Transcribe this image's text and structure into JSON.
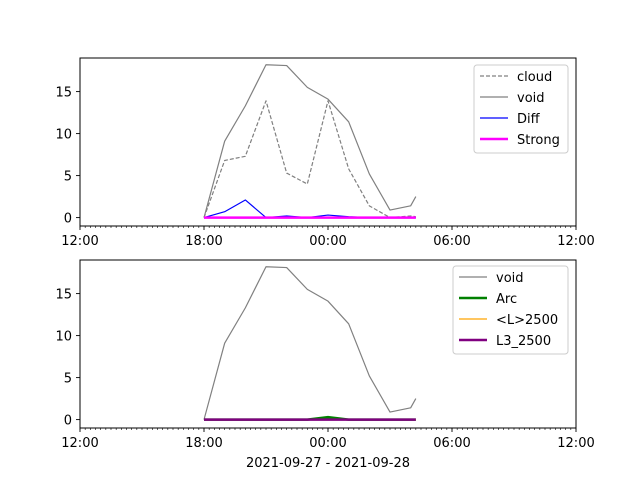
{
  "chart_data": [
    {
      "type": "line",
      "xlabel": "",
      "ylabel": "",
      "xlim": [
        "2021-09-27 12:00",
        "2021-09-28 12:00"
      ],
      "ylim": [
        -1,
        19
      ],
      "x_tick_labels": [
        "12:00",
        "18:00",
        "00:00",
        "06:00",
        "12:00"
      ],
      "y_tick_values": [
        0,
        5,
        10,
        15
      ],
      "y_tick_labels": [
        "0",
        "5",
        "10",
        "15"
      ],
      "grid": false,
      "legend_position": "upper right",
      "x": [
        "2021-09-27 18:00",
        "2021-09-27 19:00",
        "2021-09-27 20:00",
        "2021-09-27 21:00",
        "2021-09-27 22:00",
        "2021-09-27 23:00",
        "2021-09-28 00:00",
        "2021-09-28 01:00",
        "2021-09-28 02:00",
        "2021-09-28 03:00",
        "2021-09-28 04:00",
        "2021-09-28 04:15"
      ],
      "series": [
        {
          "name": "cloud",
          "color": "#808080",
          "style": "dashed",
          "values": [
            0,
            6.8,
            7.3,
            13.9,
            5.3,
            4.0,
            13.9,
            5.8,
            1.4,
            0,
            0.2,
            0.1
          ]
        },
        {
          "name": "void",
          "color": "#808080",
          "style": "solid",
          "values": [
            0,
            9.1,
            13.3,
            18.2,
            18.1,
            15.5,
            14.1,
            11.4,
            5.2,
            0.9,
            1.4,
            2.5
          ]
        },
        {
          "name": "Diff",
          "color": "#0000ff",
          "style": "solid",
          "values": [
            0,
            0.7,
            2.1,
            0,
            0.2,
            0,
            0.3,
            0.1,
            0,
            0,
            0,
            0
          ]
        },
        {
          "name": "Strong",
          "color": "#ff00ff",
          "style": "thick",
          "values": [
            0,
            0,
            0,
            0,
            0,
            0,
            0,
            0,
            0,
            0,
            0,
            0
          ]
        }
      ]
    },
    {
      "type": "line",
      "xlabel": "2021-09-27 - 2021-09-28",
      "ylabel": "",
      "xlim": [
        "2021-09-27 12:00",
        "2021-09-28 12:00"
      ],
      "ylim": [
        -1,
        19
      ],
      "x_tick_labels": [
        "12:00",
        "18:00",
        "00:00",
        "06:00",
        "12:00"
      ],
      "y_tick_values": [
        0,
        5,
        10,
        15
      ],
      "y_tick_labels": [
        "0",
        "5",
        "10",
        "15"
      ],
      "grid": false,
      "legend_position": "upper right",
      "x": [
        "2021-09-27 18:00",
        "2021-09-27 19:00",
        "2021-09-27 20:00",
        "2021-09-27 21:00",
        "2021-09-27 22:00",
        "2021-09-27 23:00",
        "2021-09-28 00:00",
        "2021-09-28 01:00",
        "2021-09-28 02:00",
        "2021-09-28 03:00",
        "2021-09-28 04:00",
        "2021-09-28 04:15"
      ],
      "series": [
        {
          "name": "void",
          "color": "#808080",
          "style": "solid",
          "values": [
            0,
            9.1,
            13.3,
            18.2,
            18.1,
            15.5,
            14.1,
            11.4,
            5.2,
            0.9,
            1.4,
            2.5
          ]
        },
        {
          "name": "Arc",
          "color": "#008000",
          "style": "thick",
          "values": [
            0,
            0,
            0,
            0,
            0,
            0,
            0.3,
            0,
            0,
            0,
            0,
            0
          ]
        },
        {
          "name": "<L>2500",
          "color": "#ffa500",
          "style": "solid",
          "values": [
            0,
            0,
            0,
            0,
            0,
            0,
            0,
            0,
            0,
            0,
            0,
            0
          ]
        },
        {
          "name": "L3_2500",
          "color": "#800080",
          "style": "thick",
          "values": [
            0,
            0,
            0,
            0,
            0,
            0,
            0,
            0,
            0,
            0,
            0,
            0
          ]
        }
      ]
    }
  ]
}
